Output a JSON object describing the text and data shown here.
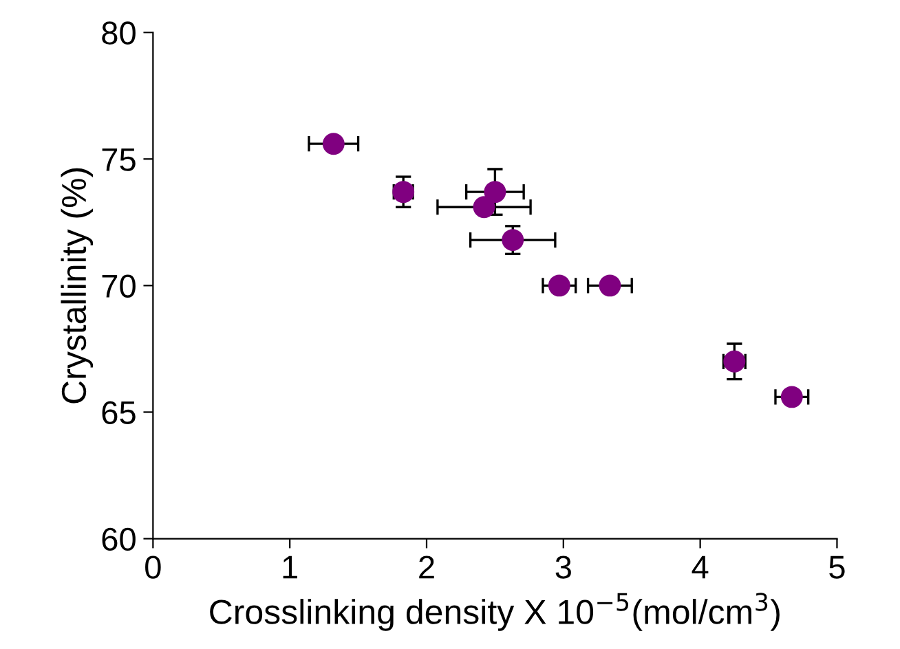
{
  "chart_data": {
    "type": "scatter",
    "xlabel": "Crosslinking density X 10$^{−5}$(mol/cm$^{3}$)",
    "ylabel": "Crystallinity (%)",
    "x": [
      1.32,
      1.83,
      2.5,
      2.42,
      2.63,
      2.97,
      3.34,
      4.25,
      4.67
    ],
    "values": [
      75.6,
      73.7,
      73.7,
      73.1,
      71.8,
      70.0,
      70.0,
      67.0,
      65.6
    ],
    "errors": [
      null,
      0.6,
      0.9,
      null,
      0.55,
      null,
      null,
      0.7,
      null
    ],
    "xerrors": [
      0.18,
      0.07,
      0.21,
      0.34,
      0.31,
      0.12,
      0.16,
      0.08,
      0.12
    ],
    "color": "#800080",
    "marker": "circle",
    "xlim": [
      0,
      5
    ],
    "ylim": [
      60,
      80
    ],
    "xticks": [
      0,
      1,
      2,
      3,
      4,
      5
    ],
    "yticks": [
      60,
      65,
      70,
      75,
      80
    ],
    "grid": false,
    "legend": false
  }
}
